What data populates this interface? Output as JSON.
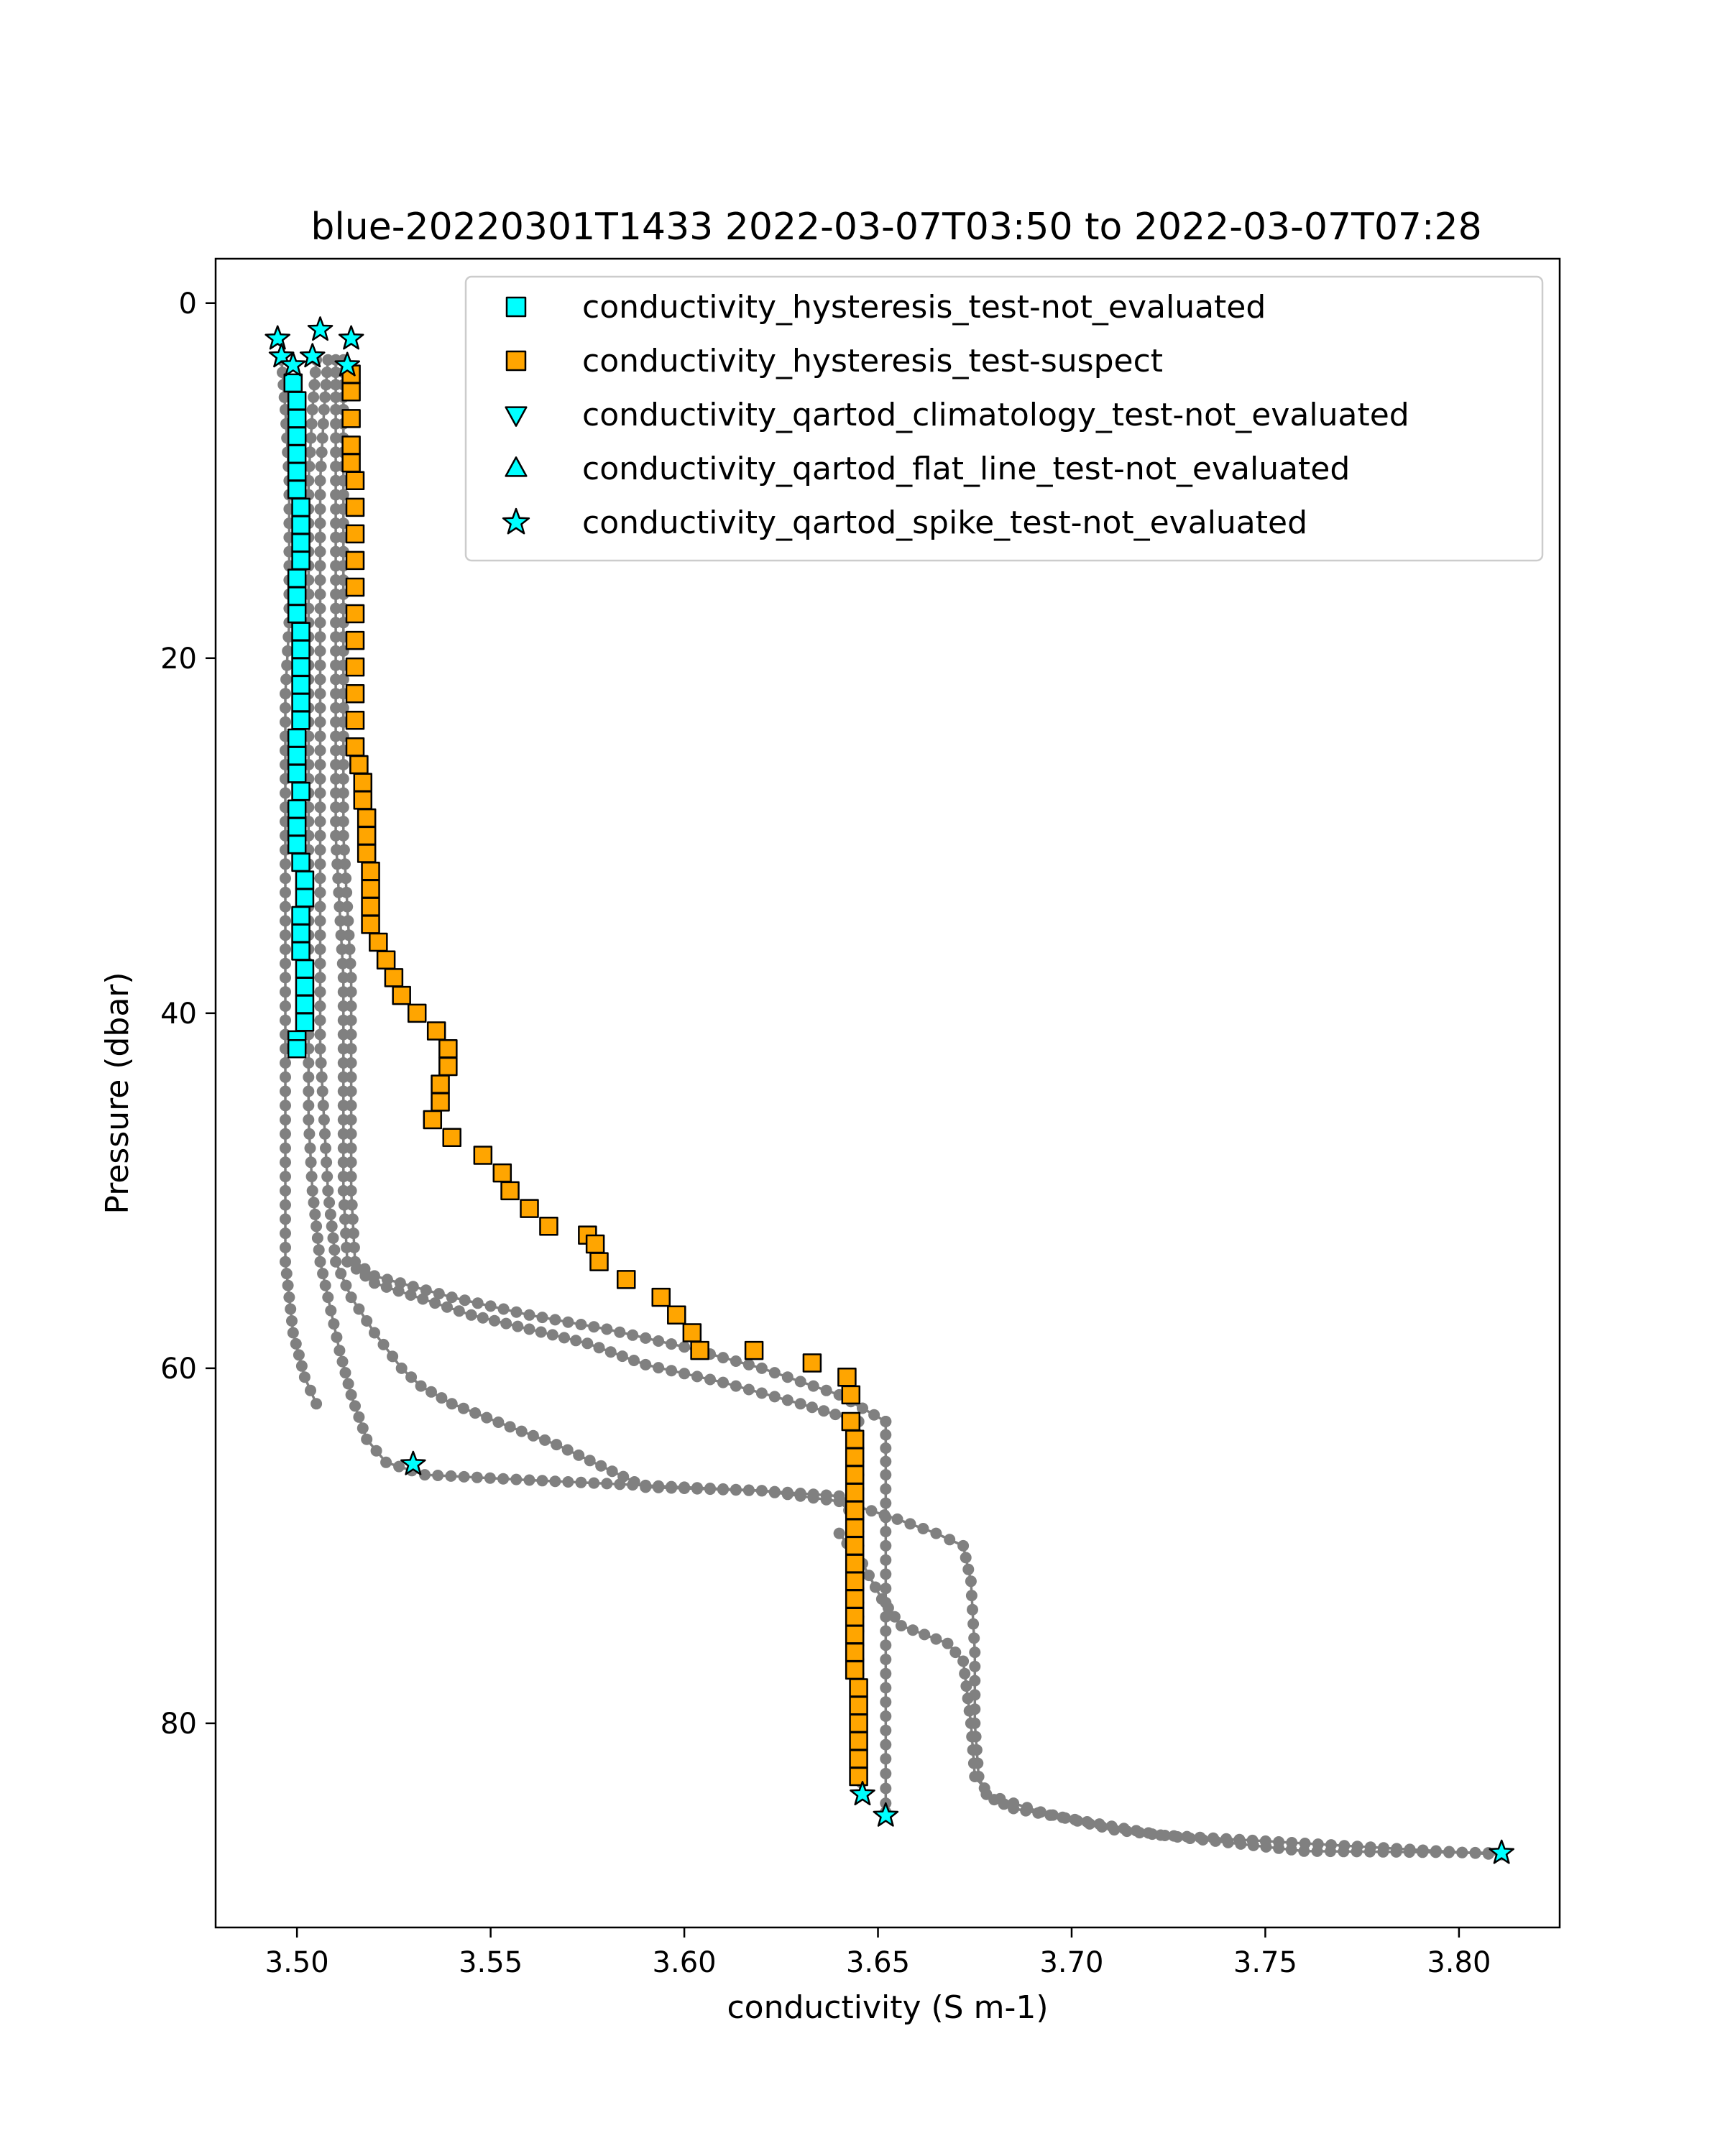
{
  "chart_data": {
    "type": "scatter",
    "title": "blue-20220301T1433 2022-03-07T03:50 to 2022-03-07T07:28",
    "xlabel": "conductivity (S m-1)",
    "ylabel": "Pressure (dbar)",
    "xlim": [
      3.479,
      3.826
    ],
    "ylim": [
      91.5,
      -2.5
    ],
    "y_inverted": true,
    "xticks": [
      {
        "value": 3.5,
        "label": "3.50"
      },
      {
        "value": 3.55,
        "label": "3.55"
      },
      {
        "value": 3.6,
        "label": "3.60"
      },
      {
        "value": 3.65,
        "label": "3.65"
      },
      {
        "value": 3.7,
        "label": "3.70"
      },
      {
        "value": 3.75,
        "label": "3.75"
      },
      {
        "value": 3.8,
        "label": "3.80"
      }
    ],
    "yticks": [
      {
        "value": 0,
        "label": "0"
      },
      {
        "value": 20,
        "label": "20"
      },
      {
        "value": 40,
        "label": "40"
      },
      {
        "value": 60,
        "label": "60"
      },
      {
        "value": 80,
        "label": "80"
      }
    ],
    "grid": false,
    "legend_position": "top-right",
    "colors": {
      "profile": "#808080",
      "not_evaluated": "#00ffff",
      "suspect": "#ffa500",
      "edge": "#000000"
    },
    "profiles": [
      [
        [
          3.496,
          3.2
        ],
        [
          3.497,
          6.0
        ],
        [
          3.498,
          10.0
        ],
        [
          3.498,
          14.0
        ],
        [
          3.498,
          18.0
        ],
        [
          3.497,
          22.0
        ],
        [
          3.497,
          26.0
        ],
        [
          3.497,
          30.0
        ],
        [
          3.497,
          34.0
        ],
        [
          3.497,
          38.0
        ],
        [
          3.497,
          42.0
        ],
        [
          3.497,
          46.0
        ],
        [
          3.497,
          50.0
        ],
        [
          3.497,
          54.0
        ],
        [
          3.499,
          58.0
        ],
        [
          3.502,
          60.5
        ],
        [
          3.505,
          62.0
        ]
      ],
      [
        [
          3.505,
          3.2
        ],
        [
          3.504,
          6.0
        ],
        [
          3.503,
          10.0
        ],
        [
          3.503,
          14.0
        ],
        [
          3.503,
          18.0
        ],
        [
          3.503,
          22.0
        ],
        [
          3.503,
          26.0
        ],
        [
          3.503,
          30.0
        ],
        [
          3.503,
          34.0
        ],
        [
          3.503,
          38.0
        ],
        [
          3.503,
          42.0
        ],
        [
          3.503,
          46.0
        ],
        [
          3.504,
          50.0
        ],
        [
          3.506,
          54.0
        ],
        [
          3.508,
          56.0
        ],
        [
          3.511,
          59.0
        ],
        [
          3.514,
          61.5
        ],
        [
          3.518,
          64.0
        ],
        [
          3.523,
          65.3
        ],
        [
          3.533,
          66.0
        ],
        [
          3.56,
          66.3
        ],
        [
          3.62,
          66.9
        ],
        [
          3.64,
          67.5
        ],
        [
          3.645,
          68.5
        ]
      ],
      [
        [
          3.508,
          3.2
        ],
        [
          3.507,
          6.0
        ],
        [
          3.506,
          10.0
        ],
        [
          3.506,
          14.0
        ],
        [
          3.506,
          18.0
        ],
        [
          3.506,
          22.0
        ],
        [
          3.506,
          26.0
        ],
        [
          3.506,
          30.0
        ],
        [
          3.506,
          34.0
        ],
        [
          3.506,
          38.0
        ],
        [
          3.506,
          42.0
        ],
        [
          3.507,
          46.0
        ],
        [
          3.508,
          50.0
        ],
        [
          3.51,
          54.0
        ],
        [
          3.514,
          56.0
        ],
        [
          3.52,
          58.0
        ],
        [
          3.527,
          60.0
        ],
        [
          3.532,
          61.0
        ],
        [
          3.54,
          62.0
        ],
        [
          3.555,
          63.3
        ],
        [
          3.567,
          64.3
        ],
        [
          3.59,
          66.7
        ],
        [
          3.62,
          66.9
        ],
        [
          3.64,
          67.2
        ],
        [
          3.645,
          67.8
        ]
      ],
      [
        [
          3.51,
          3.2
        ],
        [
          3.51,
          6.0
        ],
        [
          3.51,
          10.0
        ],
        [
          3.51,
          14.0
        ],
        [
          3.51,
          18.0
        ],
        [
          3.51,
          22.0
        ],
        [
          3.51,
          26.0
        ],
        [
          3.51,
          30.0
        ],
        [
          3.511,
          34.0
        ],
        [
          3.512,
          38.0
        ],
        [
          3.512,
          42.0
        ],
        [
          3.512,
          46.0
        ],
        [
          3.512,
          50.0
        ],
        [
          3.513,
          54.0
        ],
        [
          3.52,
          55.2
        ],
        [
          3.545,
          57.0
        ],
        [
          3.56,
          57.8
        ],
        [
          3.575,
          58.6
        ],
        [
          3.59,
          59.8
        ],
        [
          3.61,
          60.8
        ],
        [
          3.63,
          62.0
        ],
        [
          3.645,
          63.0
        ]
      ],
      [
        [
          3.512,
          3.2
        ],
        [
          3.512,
          6.0
        ],
        [
          3.512,
          10.0
        ],
        [
          3.512,
          14.0
        ],
        [
          3.512,
          18.0
        ],
        [
          3.512,
          22.0
        ],
        [
          3.512,
          26.0
        ],
        [
          3.512,
          30.0
        ],
        [
          3.513,
          34.0
        ],
        [
          3.514,
          38.0
        ],
        [
          3.514,
          42.0
        ],
        [
          3.514,
          46.0
        ],
        [
          3.514,
          50.0
        ],
        [
          3.515,
          54.0
        ],
        [
          3.52,
          54.8
        ],
        [
          3.54,
          56.0
        ],
        [
          3.56,
          57.0
        ],
        [
          3.58,
          57.8
        ],
        [
          3.6,
          58.8
        ],
        [
          3.62,
          60.0
        ],
        [
          3.64,
          61.5
        ],
        [
          3.652,
          63.0
        ]
      ],
      [
        [
          3.645,
          63.0
        ],
        [
          3.645,
          66.0
        ],
        [
          3.645,
          70.0
        ],
        [
          3.645,
          74.0
        ],
        [
          3.645,
          78.0
        ],
        [
          3.645,
          82.0
        ],
        [
          3.646,
          84.0
        ]
      ],
      [
        [
          3.652,
          63.0
        ],
        [
          3.652,
          66.0
        ],
        [
          3.652,
          70.0
        ],
        [
          3.652,
          74.0
        ],
        [
          3.652,
          78.0
        ],
        [
          3.652,
          82.0
        ],
        [
          3.652,
          84.5
        ],
        [
          3.652,
          85.0
        ]
      ],
      [
        [
          3.645,
          67.8
        ],
        [
          3.655,
          68.5
        ],
        [
          3.665,
          69.3
        ],
        [
          3.672,
          70.0
        ],
        [
          3.674,
          72.0
        ],
        [
          3.675,
          76.0
        ],
        [
          3.675,
          80.0
        ],
        [
          3.676,
          83.0
        ],
        [
          3.678,
          84.0
        ],
        [
          3.692,
          85.0
        ],
        [
          3.711,
          86.0
        ],
        [
          3.76,
          87.2
        ],
        [
          3.811,
          87.3
        ]
      ],
      [
        [
          3.64,
          69.3
        ],
        [
          3.646,
          71.0
        ],
        [
          3.651,
          73.0
        ],
        [
          3.656,
          74.5
        ],
        [
          3.668,
          75.5
        ],
        [
          3.672,
          76.5
        ],
        [
          3.674,
          80.0
        ],
        [
          3.675,
          83.0
        ],
        [
          3.68,
          84.3
        ],
        [
          3.685,
          84.8
        ],
        [
          3.723,
          86.3
        ],
        [
          3.811,
          87.4
        ]
      ]
    ],
    "series": [
      {
        "name": "conductivity_hysteresis_test-not_evaluated",
        "marker": "square",
        "color": "#00ffff",
        "points": [
          [
            3.499,
            4.5
          ],
          [
            3.5,
            5.5
          ],
          [
            3.5,
            6.5
          ],
          [
            3.5,
            7.5
          ],
          [
            3.5,
            8.5
          ],
          [
            3.5,
            9.5
          ],
          [
            3.5,
            10.5
          ],
          [
            3.501,
            11.5
          ],
          [
            3.501,
            12.5
          ],
          [
            3.501,
            13.5
          ],
          [
            3.501,
            14.5
          ],
          [
            3.5,
            15.5
          ],
          [
            3.5,
            16.5
          ],
          [
            3.5,
            17.5
          ],
          [
            3.501,
            18.5
          ],
          [
            3.501,
            19.5
          ],
          [
            3.501,
            20.5
          ],
          [
            3.501,
            21.5
          ],
          [
            3.501,
            22.5
          ],
          [
            3.501,
            23.5
          ],
          [
            3.5,
            24.5
          ],
          [
            3.5,
            25.5
          ],
          [
            3.5,
            26.5
          ],
          [
            3.501,
            27.5
          ],
          [
            3.5,
            28.5
          ],
          [
            3.5,
            29.5
          ],
          [
            3.5,
            30.5
          ],
          [
            3.501,
            31.5
          ],
          [
            3.502,
            32.5
          ],
          [
            3.502,
            33.5
          ],
          [
            3.501,
            34.5
          ],
          [
            3.501,
            35.5
          ],
          [
            3.501,
            36.5
          ],
          [
            3.502,
            37.5
          ],
          [
            3.502,
            38.5
          ],
          [
            3.502,
            39.5
          ],
          [
            3.502,
            40.5
          ],
          [
            3.5,
            41.5
          ],
          [
            3.5,
            42.0
          ]
        ]
      },
      {
        "name": "conductivity_hysteresis_test-suspect",
        "marker": "square",
        "color": "#ffa500",
        "points": [
          [
            3.514,
            4.0
          ],
          [
            3.514,
            5.0
          ],
          [
            3.514,
            6.5
          ],
          [
            3.514,
            8.0
          ],
          [
            3.514,
            9.0
          ],
          [
            3.515,
            10.0
          ],
          [
            3.515,
            11.5
          ],
          [
            3.515,
            13.0
          ],
          [
            3.515,
            14.5
          ],
          [
            3.515,
            16.0
          ],
          [
            3.515,
            17.5
          ],
          [
            3.515,
            19.0
          ],
          [
            3.515,
            20.5
          ],
          [
            3.515,
            22.0
          ],
          [
            3.515,
            23.5
          ],
          [
            3.515,
            25.0
          ],
          [
            3.516,
            26.0
          ],
          [
            3.517,
            27.0
          ],
          [
            3.517,
            28.0
          ],
          [
            3.518,
            29.0
          ],
          [
            3.518,
            30.0
          ],
          [
            3.518,
            31.0
          ],
          [
            3.519,
            32.0
          ],
          [
            3.519,
            33.0
          ],
          [
            3.519,
            34.0
          ],
          [
            3.519,
            35.0
          ],
          [
            3.521,
            36.0
          ],
          [
            3.523,
            37.0
          ],
          [
            3.525,
            38.0
          ],
          [
            3.527,
            39.0
          ],
          [
            3.531,
            40.0
          ],
          [
            3.536,
            41.0
          ],
          [
            3.539,
            42.0
          ],
          [
            3.539,
            43.0
          ],
          [
            3.537,
            44.0
          ],
          [
            3.537,
            45.0
          ],
          [
            3.535,
            46.0
          ],
          [
            3.54,
            47.0
          ],
          [
            3.548,
            48.0
          ],
          [
            3.553,
            49.0
          ],
          [
            3.555,
            50.0
          ],
          [
            3.56,
            51.0
          ],
          [
            3.565,
            52.0
          ],
          [
            3.575,
            52.5
          ],
          [
            3.577,
            53.0
          ],
          [
            3.578,
            54.0
          ],
          [
            3.585,
            55.0
          ],
          [
            3.594,
            56.0
          ],
          [
            3.598,
            57.0
          ],
          [
            3.602,
            58.0
          ],
          [
            3.604,
            59.0
          ],
          [
            3.618,
            59.0
          ],
          [
            3.633,
            59.7
          ],
          [
            3.642,
            60.5
          ],
          [
            3.643,
            61.5
          ],
          [
            3.643,
            63.0
          ],
          [
            3.644,
            64.0
          ],
          [
            3.644,
            65.0
          ],
          [
            3.644,
            66.0
          ],
          [
            3.644,
            67.0
          ],
          [
            3.644,
            68.0
          ],
          [
            3.644,
            69.0
          ],
          [
            3.644,
            70.0
          ],
          [
            3.644,
            71.0
          ],
          [
            3.644,
            72.0
          ],
          [
            3.644,
            73.0
          ],
          [
            3.644,
            74.0
          ],
          [
            3.644,
            75.0
          ],
          [
            3.644,
            76.0
          ],
          [
            3.644,
            77.0
          ],
          [
            3.645,
            78.0
          ],
          [
            3.645,
            79.0
          ],
          [
            3.645,
            80.0
          ],
          [
            3.645,
            81.0
          ],
          [
            3.645,
            82.0
          ],
          [
            3.645,
            83.0
          ]
        ]
      },
      {
        "name": "conductivity_qartod_climatology_test-not_evaluated",
        "marker": "triangle-down",
        "color": "#00ffff",
        "points": []
      },
      {
        "name": "conductivity_qartod_flat_line_test-not_evaluated",
        "marker": "triangle-up",
        "color": "#00ffff",
        "points": []
      },
      {
        "name": "conductivity_qartod_spike_test-not_evaluated",
        "marker": "star",
        "color": "#00ffff",
        "points": [
          [
            3.495,
            2.0
          ],
          [
            3.496,
            3.0
          ],
          [
            3.499,
            3.5
          ],
          [
            3.504,
            3.0
          ],
          [
            3.506,
            1.5
          ],
          [
            3.514,
            2.0
          ],
          [
            3.513,
            3.5
          ],
          [
            3.53,
            65.4
          ],
          [
            3.646,
            84.0
          ],
          [
            3.652,
            85.2
          ],
          [
            3.811,
            87.3
          ]
        ]
      }
    ]
  }
}
